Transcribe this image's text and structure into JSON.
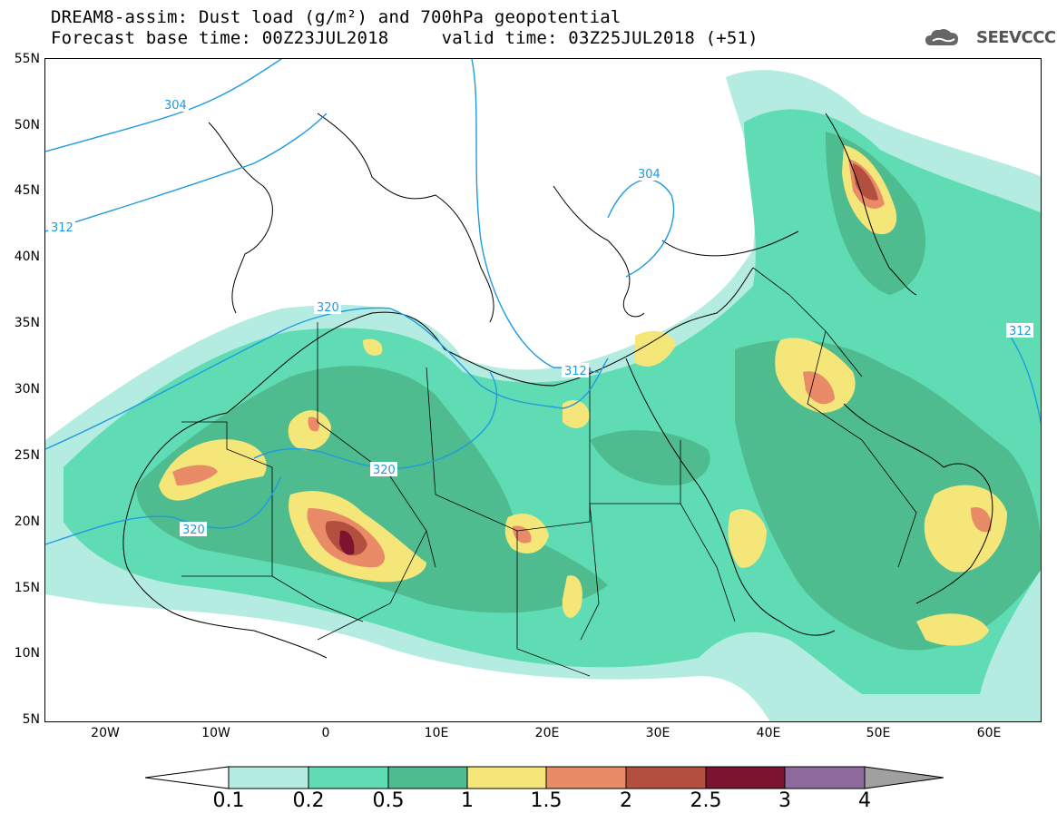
{
  "title": {
    "line1": "DREAM8-assim: Dust load (g/m²) and 700hPa geopotential",
    "line2": "Forecast base time: 00Z23JUL2018     valid time: 03Z25JUL2018 (+51)"
  },
  "logo": {
    "text": "SEEVCCC",
    "icon": "cloud-logo-icon"
  },
  "map": {
    "lat_labels": [
      "55N",
      "50N",
      "45N",
      "40N",
      "35N",
      "30N",
      "25N",
      "20N",
      "15N",
      "10N",
      "5N"
    ],
    "lon_labels": [
      "20W",
      "10W",
      "0",
      "10E",
      "20E",
      "30E",
      "40E",
      "50E",
      "60E"
    ],
    "lat_range": [
      5,
      55
    ],
    "lon_range": [
      -25,
      65
    ],
    "geopotential_contours": [
      {
        "value": "304",
        "color": "#1e9be0"
      },
      {
        "value": "312",
        "color": "#1e9be0"
      },
      {
        "value": "320",
        "color": "#1e9be0"
      },
      {
        "value": "304",
        "color": "#1e9be0"
      },
      {
        "value": "312",
        "color": "#1e9be0"
      },
      {
        "value": "320",
        "color": "#1e9be0"
      },
      {
        "value": "320",
        "color": "#1e9be0"
      },
      {
        "value": "312",
        "color": "#1e9be0"
      }
    ]
  },
  "colorbar": {
    "labels": [
      "0.1",
      "0.2",
      "0.5",
      "1",
      "1.5",
      "2",
      "2.5",
      "3",
      "4"
    ],
    "colors": [
      "#b4ece2",
      "#5fdcb4",
      "#4ebc8e",
      "#f5e67a",
      "#e88b66",
      "#b24f3f",
      "#7c1430",
      "#8c6a9c",
      "#a0a0a0"
    ]
  }
}
